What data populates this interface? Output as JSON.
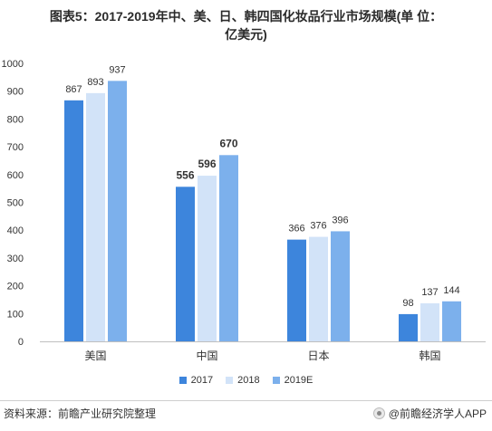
{
  "chart_data": {
    "type": "bar",
    "title_line1": "图表5：2017-2019年中、美、日、韩四国化妆品行业市场规模(单 位：",
    "title_line2": "亿美元)",
    "categories": [
      "美国",
      "中国",
      "日本",
      "韩国"
    ],
    "series": [
      {
        "name": "2017",
        "values": [
          867,
          556,
          366,
          98
        ],
        "color": "#3d85dc"
      },
      {
        "name": "2018",
        "values": [
          893,
          596,
          376,
          137
        ],
        "color": "#d2e3f8"
      },
      {
        "name": "2019E",
        "values": [
          937,
          670,
          396,
          144
        ],
        "color": "#7cb0ec"
      }
    ],
    "bold_labels_category": "中国",
    "ylim": [
      0,
      1000
    ],
    "yticks": [
      0,
      100,
      200,
      300,
      400,
      500,
      600,
      700,
      800,
      900,
      1000
    ],
    "grid": false,
    "legend": "bottom"
  },
  "footer": {
    "source": "资料来源：前瞻产业研究院整理",
    "brand": "@前瞻经济学人APP"
  }
}
